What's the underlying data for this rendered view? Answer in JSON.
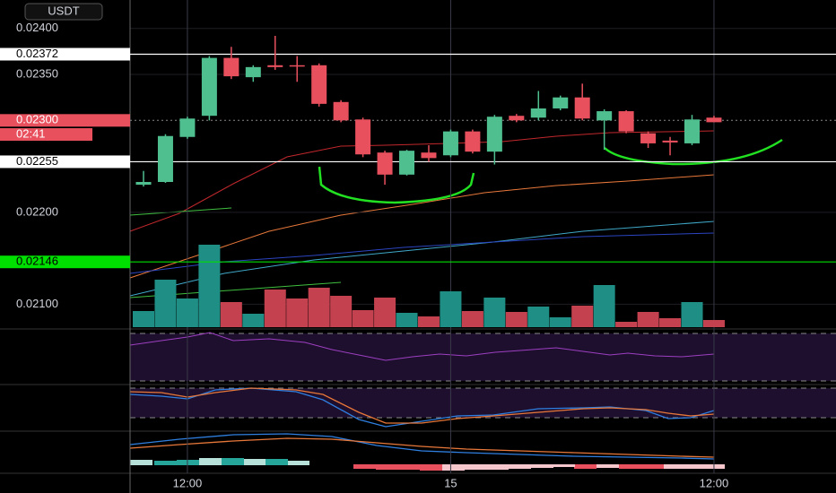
{
  "chart_data": {
    "type": "candlestick",
    "currency": "USDT",
    "categories": [
      null,
      null,
      "12:00",
      null,
      null,
      null,
      null,
      null,
      null,
      null,
      null,
      null,
      null,
      null,
      "15",
      null,
      null,
      null,
      null,
      null,
      null,
      null,
      null,
      null,
      null,
      null,
      "12:00"
    ],
    "open": [
      0.0223,
      0.02233,
      0.02282,
      0.02305,
      0.02368,
      0.02347,
      0.0236,
      0.0236,
      0.0236,
      0.0232,
      0.02301,
      0.02265,
      0.02241,
      0.02265,
      0.02262,
      0.02288,
      0.02266,
      0.02305,
      0.02303,
      0.02313,
      0.02325,
      0.023,
      0.0231,
      0.02286,
      0.02278,
      0.02275,
      0.02303
    ],
    "high": [
      0.02245,
      0.02285,
      0.02304,
      0.0237,
      0.0238,
      0.0236,
      0.02392,
      0.0237,
      0.02362,
      0.02322,
      0.02303,
      0.02267,
      0.02268,
      0.02273,
      0.0229,
      0.0229,
      0.02306,
      0.02307,
      0.02332,
      0.02327,
      0.0234,
      0.02312,
      0.02311,
      0.02288,
      0.02282,
      0.02306,
      0.02305
    ],
    "low": [
      0.02228,
      0.02232,
      0.0228,
      0.023,
      0.02345,
      0.02342,
      0.02355,
      0.02342,
      0.02315,
      0.02298,
      0.0226,
      0.0223,
      0.0224,
      0.02255,
      0.0226,
      0.02264,
      0.02252,
      0.02298,
      0.023,
      0.02311,
      0.023,
      0.02268,
      0.02286,
      0.0227,
      0.02262,
      0.02273,
      0.02298
    ],
    "close": [
      0.02233,
      0.02283,
      0.02302,
      0.02368,
      0.02348,
      0.02358,
      0.02358,
      0.02359,
      0.02318,
      0.023,
      0.02263,
      0.02241,
      0.02267,
      0.02259,
      0.02288,
      0.02266,
      0.02304,
      0.023,
      0.02313,
      0.02325,
      0.02302,
      0.0231,
      0.02288,
      0.02275,
      0.02276,
      0.02301,
      0.02298
    ],
    "volume": [
      18,
      53,
      32,
      92,
      28,
      15,
      42,
      32,
      44,
      35,
      19,
      33,
      16,
      12,
      40,
      18,
      33,
      17,
      23,
      11,
      24,
      47,
      6,
      17,
      10,
      28,
      8
    ],
    "volume_ylim": [
      0,
      100
    ],
    "up_color": "#4fbf8f",
    "down_color": "#e8505e",
    "volume_up_color": "#1f8f86",
    "volume_down_color": "#c4424f",
    "ylim": [
      0.02075,
      0.02431
    ],
    "yticks": [
      {
        "value": 0.024,
        "label": "0.02400"
      },
      {
        "value": 0.0235,
        "label": "0.02350"
      },
      {
        "value": 0.022,
        "label": "0.02200"
      },
      {
        "value": 0.021,
        "label": "0.02100"
      }
    ],
    "grid": true,
    "price_lines": [
      0.02372,
      0.02255,
      0.02146
    ],
    "price_line_colors": [
      "#ffffff",
      "#ffffff",
      "#00e000"
    ],
    "current_price": {
      "value": 0.023,
      "label": "0.02300"
    },
    "countdown": "02:41"
  }
}
